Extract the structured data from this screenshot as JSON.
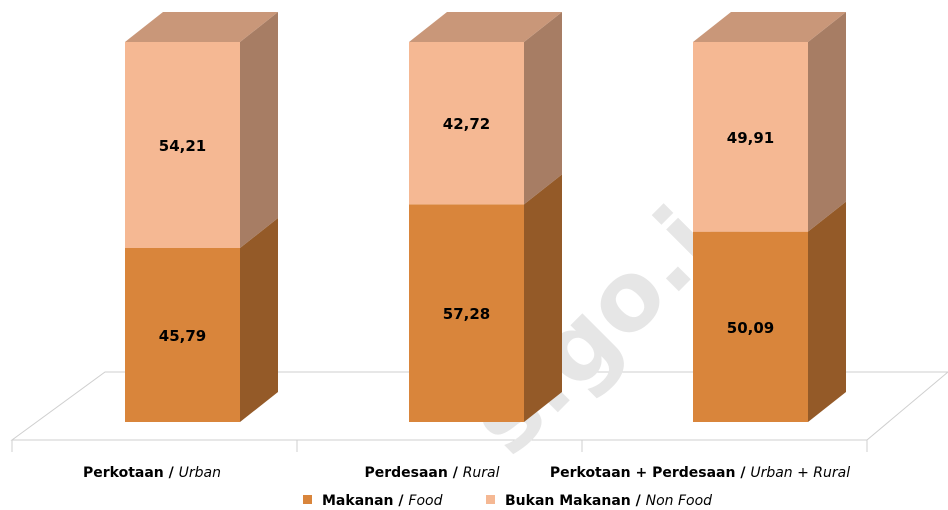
{
  "chart_data": {
    "type": "bar",
    "stacked": true,
    "three_d": true,
    "categories": [
      {
        "main": "Perkotaan /",
        "italic": "Urban"
      },
      {
        "main": "Perdesaan /",
        "italic": "Rural"
      },
      {
        "main": "Perkotaan + Perdesaan /",
        "italic": "Urban + Rural"
      }
    ],
    "series": [
      {
        "name": "Makanan /",
        "name_italic": "Food",
        "color": "#d9853b",
        "values": [
          45.79,
          57.28,
          50.09
        ],
        "labels": [
          "45,79",
          "57,28",
          "50,09"
        ]
      },
      {
        "name": "Bukan Makanan /",
        "name_italic": "Non Food",
        "color": "#f5b893",
        "values": [
          54.21,
          42.72,
          49.91
        ],
        "labels": [
          "54,21",
          "42,72",
          "49,91"
        ]
      }
    ],
    "ylim": [
      0,
      100
    ],
    "legend_position": "bottom",
    "watermark": "s.go.id"
  }
}
